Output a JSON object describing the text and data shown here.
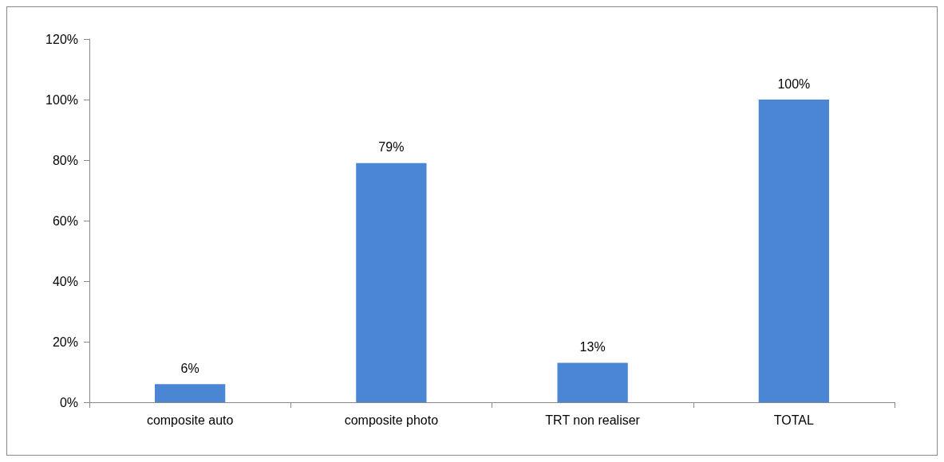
{
  "chart_data": {
    "type": "bar",
    "categories": [
      "composite auto",
      "composite photo",
      "TRT non realiser",
      "TOTAL"
    ],
    "values": [
      6,
      79,
      13,
      100
    ],
    "value_labels": [
      "6%",
      "79%",
      "13%",
      "100%"
    ],
    "color": "#4a86d4",
    "ylim": [
      0,
      120
    ],
    "yticks": [
      {
        "value": 0,
        "label": "0%"
      },
      {
        "value": 20,
        "label": "20%"
      },
      {
        "value": 40,
        "label": "40%"
      },
      {
        "value": 60,
        "label": "60%"
      },
      {
        "value": 80,
        "label": "80%"
      },
      {
        "value": 100,
        "label": "100%"
      },
      {
        "value": 120,
        "label": "120%"
      }
    ],
    "grid": false
  }
}
